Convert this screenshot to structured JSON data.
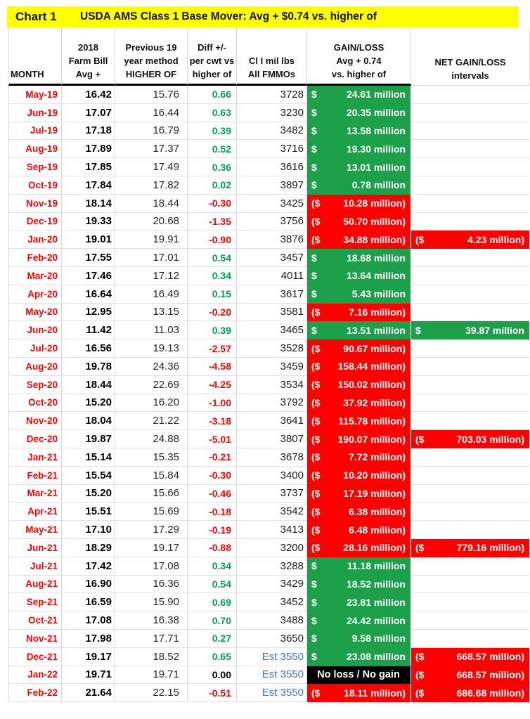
{
  "title": {
    "chart_label": "Chart 1",
    "text": "USDA AMS Class 1 Base Mover: Avg + $0.74 vs. higher of"
  },
  "header": {
    "cols": [
      "MONTH",
      "2018\nFarm Bill\nAvg +",
      "Previous 19\nyear method\nHIGHER OF",
      "Diff +/-\nper cwt  vs\nhigher of",
      "Cl I mil lbs\nAll FMMOs",
      "GAIN/LOSS\nAvg + 0.74\nvs. higher of",
      "NET GAIN/LOSS\nintervals"
    ]
  },
  "colors": {
    "title_bg": "#FFFF00",
    "gain_fill": "#1CA14A",
    "loss_fill": "#FE0000",
    "no_change_fill": "#000000",
    "month_text": "#FF0000",
    "diff_positive": "#00A24E",
    "diff_negative": "#FF0000",
    "estimate_text": "#4472C4"
  },
  "rows": [
    {
      "m": "May-19",
      "a": "16.42",
      "h": "15.76",
      "d": "0.66",
      "c": "3728",
      "est": false,
      "gl": {
        "k": "gain",
        "l": "$",
        "r": "24.61 million"
      },
      "net": null
    },
    {
      "m": "Jun-19",
      "a": "17.07",
      "h": "16.44",
      "d": "0.63",
      "c": "3230",
      "est": false,
      "gl": {
        "k": "gain",
        "l": "$",
        "r": "20.35 million"
      },
      "net": null
    },
    {
      "m": "Jul-19",
      "a": "17.18",
      "h": "16.79",
      "d": "0.39",
      "c": "3482",
      "est": false,
      "gl": {
        "k": "gain",
        "l": "$",
        "r": "13.58 million"
      },
      "net": null
    },
    {
      "m": "Aug-19",
      "a": "17.89",
      "h": "17.37",
      "d": "0.52",
      "c": "3716",
      "est": false,
      "gl": {
        "k": "gain",
        "l": "$",
        "r": "19.30 million"
      },
      "net": null
    },
    {
      "m": "Sep-19",
      "a": "17.85",
      "h": "17.49",
      "d": "0.36",
      "c": "3616",
      "est": false,
      "gl": {
        "k": "gain",
        "l": "$",
        "r": "13.01 million"
      },
      "net": null
    },
    {
      "m": "Oct-19",
      "a": "17.84",
      "h": "17.82",
      "d": "0.02",
      "c": "3897",
      "est": false,
      "gl": {
        "k": "gain",
        "l": "$",
        "r": "0.78 million"
      },
      "net": null
    },
    {
      "m": "Nov-19",
      "a": "18.14",
      "h": "18.44",
      "d": "-0.30",
      "c": "3425",
      "est": false,
      "gl": {
        "k": "loss",
        "l": "($",
        "r": "10.28 million)"
      },
      "net": null
    },
    {
      "m": "Dec-19",
      "a": "19.33",
      "h": "20.68",
      "d": "-1.35",
      "c": "3756",
      "est": false,
      "gl": {
        "k": "loss",
        "l": "($",
        "r": "50.70 million)"
      },
      "net": null
    },
    {
      "m": "Jan-20",
      "a": "19.01",
      "h": "19.91",
      "d": "-0.90",
      "c": "3876",
      "est": false,
      "gl": {
        "k": "loss",
        "l": "($",
        "r": "34.88 million)"
      },
      "net": {
        "k": "loss",
        "l": "($",
        "r": "4.23 million)"
      }
    },
    {
      "m": "Feb-20",
      "a": "17.55",
      "h": "17.01",
      "d": "0.54",
      "c": "3457",
      "est": false,
      "gl": {
        "k": "gain",
        "l": "$",
        "r": "18.68 million"
      },
      "net": null
    },
    {
      "m": "Mar-20",
      "a": "17.46",
      "h": "17.12",
      "d": "0.34",
      "c": "4011",
      "est": false,
      "gl": {
        "k": "gain",
        "l": "$",
        "r": "13.64 million"
      },
      "net": null
    },
    {
      "m": "Apr-20",
      "a": "16.64",
      "h": "16.49",
      "d": "0.15",
      "c": "3617",
      "est": false,
      "gl": {
        "k": "gain",
        "l": "$",
        "r": "5.43 million"
      },
      "net": null
    },
    {
      "m": "May-20",
      "a": "12.95",
      "h": "13.15",
      "d": "-0.20",
      "c": "3581",
      "est": false,
      "gl": {
        "k": "loss",
        "l": "($",
        "r": "7.16 million)"
      },
      "net": null
    },
    {
      "m": "Jun-20",
      "a": "11.42",
      "h": "11.03",
      "d": "0.39",
      "c": "3465",
      "est": false,
      "gl": {
        "k": "gain",
        "l": "$",
        "r": "13.51 million"
      },
      "net": {
        "k": "gain",
        "l": "$",
        "r": "39.87 million"
      }
    },
    {
      "m": "Jul-20",
      "a": "16.56",
      "h": "19.13",
      "d": "-2.57",
      "c": "3528",
      "est": false,
      "gl": {
        "k": "loss",
        "l": "($",
        "r": "90.67 million)"
      },
      "net": null
    },
    {
      "m": "Aug-20",
      "a": "19.78",
      "h": "24.36",
      "d": "-4.58",
      "c": "3459",
      "est": false,
      "gl": {
        "k": "loss",
        "l": "($",
        "r": "158.44 million)"
      },
      "net": null
    },
    {
      "m": "Sep-20",
      "a": "18.44",
      "h": "22.69",
      "d": "-4.25",
      "c": "3534",
      "est": false,
      "gl": {
        "k": "loss",
        "l": "($",
        "r": "150.02 million)"
      },
      "net": null
    },
    {
      "m": "Oct-20",
      "a": "15.20",
      "h": "16.20",
      "d": "-1.00",
      "c": "3792",
      "est": false,
      "gl": {
        "k": "loss",
        "l": "($",
        "r": "37.92 million)"
      },
      "net": null
    },
    {
      "m": "Nov-20",
      "a": "18.04",
      "h": "21.22",
      "d": "-3.18",
      "c": "3641",
      "est": false,
      "gl": {
        "k": "loss",
        "l": "($",
        "r": "115.78 million)"
      },
      "net": null
    },
    {
      "m": "Dec-20",
      "a": "19.87",
      "h": "24.88",
      "d": "-5.01",
      "c": "3807",
      "est": false,
      "gl": {
        "k": "loss",
        "l": "($",
        "r": "190.07 million)"
      },
      "net": {
        "k": "loss",
        "l": "($",
        "r": "703.03 million)"
      }
    },
    {
      "m": "Jan-21",
      "a": "15.14",
      "h": "15.35",
      "d": "-0.21",
      "c": "3678",
      "est": false,
      "gl": {
        "k": "loss",
        "l": "($",
        "r": "7.72 million)"
      },
      "net": null
    },
    {
      "m": "Feb-21",
      "a": "15.54",
      "h": "15.84",
      "d": "-0.30",
      "c": "3400",
      "est": false,
      "gl": {
        "k": "loss",
        "l": "($",
        "r": "10.20 million)"
      },
      "net": null
    },
    {
      "m": "Mar-21",
      "a": "15.20",
      "h": "15.66",
      "d": "-0.46",
      "c": "3737",
      "est": false,
      "gl": {
        "k": "loss",
        "l": "($",
        "r": "17.19 million)"
      },
      "net": null
    },
    {
      "m": "Apr-21",
      "a": "15.51",
      "h": "15.69",
      "d": "-0.18",
      "c": "3542",
      "est": false,
      "gl": {
        "k": "loss",
        "l": "($",
        "r": "6.38 million)"
      },
      "net": null
    },
    {
      "m": "May-21",
      "a": "17.10",
      "h": "17.29",
      "d": "-0.19",
      "c": "3413",
      "est": false,
      "gl": {
        "k": "loss",
        "l": "($",
        "r": "6.48 million)"
      },
      "net": null
    },
    {
      "m": "Jun-21",
      "a": "18.29",
      "h": "19.17",
      "d": "-0.88",
      "c": "3200",
      "est": false,
      "gl": {
        "k": "loss",
        "l": "($",
        "r": "28.16 million)"
      },
      "net": {
        "k": "loss",
        "l": "($",
        "r": "779.16 million)"
      }
    },
    {
      "m": "Jul-21",
      "a": "17.42",
      "h": "17.08",
      "d": "0.34",
      "c": "3288",
      "est": false,
      "gl": {
        "k": "gain",
        "l": "$",
        "r": "11.18 million"
      },
      "net": null
    },
    {
      "m": "Aug-21",
      "a": "16.90",
      "h": "16.36",
      "d": "0.54",
      "c": "3429",
      "est": false,
      "gl": {
        "k": "gain",
        "l": "$",
        "r": "18.52 million"
      },
      "net": null
    },
    {
      "m": "Sep-21",
      "a": "16.59",
      "h": "15.90",
      "d": "0.69",
      "c": "3452",
      "est": false,
      "gl": {
        "k": "gain",
        "l": "$",
        "r": "23.81 million"
      },
      "net": null
    },
    {
      "m": "Oct-21",
      "a": "17.08",
      "h": "16.38",
      "d": "0.70",
      "c": "3488",
      "est": false,
      "gl": {
        "k": "gain",
        "l": "$",
        "r": "24.42 million"
      },
      "net": null
    },
    {
      "m": "Nov-21",
      "a": "17.98",
      "h": "17.71",
      "d": "0.27",
      "c": "3650",
      "est": false,
      "gl": {
        "k": "gain",
        "l": "$",
        "r": "9.58 million"
      },
      "net": null
    },
    {
      "m": "Dec-21",
      "a": "19.17",
      "h": "18.52",
      "d": "0.65",
      "c": "Est 3550",
      "est": true,
      "gl": {
        "k": "gain",
        "l": "$",
        "r": "23.08 million"
      },
      "net": {
        "k": "loss",
        "l": "($",
        "r": "668.57 million)"
      }
    },
    {
      "m": "Jan-22",
      "a": "19.71",
      "h": "19.71",
      "d": "0.00",
      "c": "Est 3550",
      "est": true,
      "gl": {
        "k": "zero",
        "t": "No loss / No gain"
      },
      "net": {
        "k": "loss",
        "l": "($",
        "r": "668.57 million)"
      }
    },
    {
      "m": "Feb-22",
      "a": "21.64",
      "h": "22.15",
      "d": "-0.51",
      "c": "Est 3550",
      "est": true,
      "gl": {
        "k": "loss",
        "l": "($",
        "r": "18.11 million)"
      },
      "net": {
        "k": "loss",
        "l": "($",
        "r": "686.68 million)"
      }
    }
  ],
  "chart_data": {
    "type": "table",
    "title": "Chart 1  USDA AMS Class 1 Base Mover: Avg + $0.74 vs. higher of",
    "columns": [
      "MONTH",
      "2018 Farm Bill Avg +",
      "Previous 19 year method HIGHER OF",
      "Diff +/- per cwt vs higher of",
      "Cl I mil lbs All FMMOs",
      "GAIN/LOSS Avg + 0.74 vs. higher of",
      "NET GAIN/LOSS intervals"
    ],
    "months": [
      "May-19",
      "Jun-19",
      "Jul-19",
      "Aug-19",
      "Sep-19",
      "Oct-19",
      "Nov-19",
      "Dec-19",
      "Jan-20",
      "Feb-20",
      "Mar-20",
      "Apr-20",
      "May-20",
      "Jun-20",
      "Jul-20",
      "Aug-20",
      "Sep-20",
      "Oct-20",
      "Nov-20",
      "Dec-20",
      "Jan-21",
      "Feb-21",
      "Mar-21",
      "Apr-21",
      "May-21",
      "Jun-21",
      "Jul-21",
      "Aug-21",
      "Sep-21",
      "Oct-21",
      "Nov-21",
      "Dec-21",
      "Jan-22",
      "Feb-22"
    ],
    "farm_bill_avg_plus": [
      16.42,
      17.07,
      17.18,
      17.89,
      17.85,
      17.84,
      18.14,
      19.33,
      19.01,
      17.55,
      17.46,
      16.64,
      12.95,
      11.42,
      16.56,
      19.78,
      18.44,
      15.2,
      18.04,
      19.87,
      15.14,
      15.54,
      15.2,
      15.51,
      17.1,
      18.29,
      17.42,
      16.9,
      16.59,
      17.08,
      17.98,
      19.17,
      19.71,
      21.64
    ],
    "higher_of": [
      15.76,
      16.44,
      16.79,
      17.37,
      17.49,
      17.82,
      18.44,
      20.68,
      19.91,
      17.01,
      17.12,
      16.49,
      13.15,
      11.03,
      19.13,
      24.36,
      22.69,
      16.2,
      21.22,
      24.88,
      15.35,
      15.84,
      15.66,
      15.69,
      17.29,
      19.17,
      17.08,
      16.36,
      15.9,
      16.38,
      17.71,
      18.52,
      19.71,
      22.15
    ],
    "diff_per_cwt": [
      0.66,
      0.63,
      0.39,
      0.52,
      0.36,
      0.02,
      -0.3,
      -1.35,
      -0.9,
      0.54,
      0.34,
      0.15,
      -0.2,
      0.39,
      -2.57,
      -4.58,
      -4.25,
      -1.0,
      -3.18,
      -5.01,
      -0.21,
      -0.3,
      -0.46,
      -0.18,
      -0.19,
      -0.88,
      0.34,
      0.54,
      0.69,
      0.7,
      0.27,
      0.65,
      0.0,
      -0.51
    ],
    "class1_mil_lbs": [
      3728,
      3230,
      3482,
      3716,
      3616,
      3897,
      3425,
      3756,
      3876,
      3457,
      4011,
      3617,
      3581,
      3465,
      3528,
      3459,
      3534,
      3792,
      3641,
      3807,
      3678,
      3400,
      3737,
      3542,
      3413,
      3200,
      3288,
      3429,
      3452,
      3488,
      3650,
      "Est 3550",
      "Est 3550",
      "Est 3550"
    ],
    "gain_loss_million": [
      24.61,
      20.35,
      13.58,
      19.3,
      13.01,
      0.78,
      -10.28,
      -50.7,
      -34.88,
      18.68,
      13.64,
      5.43,
      -7.16,
      13.51,
      -90.67,
      -158.44,
      -150.02,
      -37.92,
      -115.78,
      -190.07,
      -7.72,
      -10.2,
      -17.19,
      -6.38,
      -6.48,
      -28.16,
      11.18,
      18.52,
      23.81,
      24.42,
      9.58,
      23.08,
      0,
      -18.11
    ],
    "net_gain_loss_million": [
      null,
      null,
      null,
      null,
      null,
      null,
      null,
      null,
      -4.23,
      null,
      null,
      null,
      null,
      39.87,
      null,
      null,
      null,
      null,
      null,
      -703.03,
      null,
      null,
      null,
      null,
      null,
      -779.16,
      null,
      null,
      null,
      null,
      null,
      -668.57,
      -668.57,
      -686.68
    ],
    "notes": "Jan-22 gain/loss shown as 'No loss / No gain'; gains green fill, losses red fill with parentheses"
  }
}
